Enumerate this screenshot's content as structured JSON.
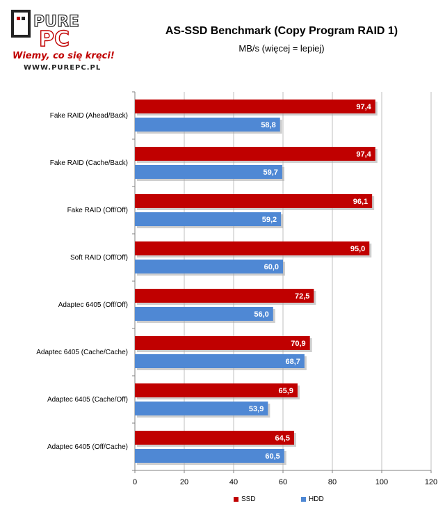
{
  "logo": {
    "brand_top": "PURE",
    "brand_bottom": "PC",
    "tagline": "Wiemy, co się kręci!",
    "url": "WWW.PUREPC.PL"
  },
  "chart_data": {
    "type": "bar",
    "orientation": "horizontal",
    "title": "AS-SSD Benchmark (Copy Program RAID 1)",
    "subtitle": "MB/s (więcej = lepiej)",
    "categories": [
      "Fake RAID (Ahead/Back)",
      "Fake RAID (Cache/Back)",
      "Fake RAID (Off/Off)",
      "Soft RAID (Off/Off)",
      "Adaptec 6405  (Off/Off)",
      "Adaptec 6405  (Cache/Cache)",
      "Adaptec 6405  (Cache/Off)",
      "Adaptec 6405  (Off/Cache)"
    ],
    "series": [
      {
        "name": "SSD",
        "color": "#c00000",
        "values": [
          97.4,
          97.4,
          96.1,
          95.0,
          72.5,
          70.9,
          65.9,
          64.5
        ],
        "labels": [
          "97,4",
          "97,4",
          "96,1",
          "95,0",
          "72,5",
          "70,9",
          "65,9",
          "64,5"
        ]
      },
      {
        "name": "HDD",
        "color": "#4f88d4",
        "values": [
          58.8,
          59.7,
          59.2,
          60.0,
          56.0,
          68.7,
          53.9,
          60.5
        ],
        "labels": [
          "58,8",
          "59,7",
          "59,2",
          "60,0",
          "56,0",
          "68,7",
          "53,9",
          "60,5"
        ]
      }
    ],
    "xlim": [
      0,
      120
    ],
    "xticks": [
      "0",
      "20",
      "40",
      "60",
      "80",
      "100",
      "120"
    ],
    "grid": true,
    "legend": "bottom"
  }
}
